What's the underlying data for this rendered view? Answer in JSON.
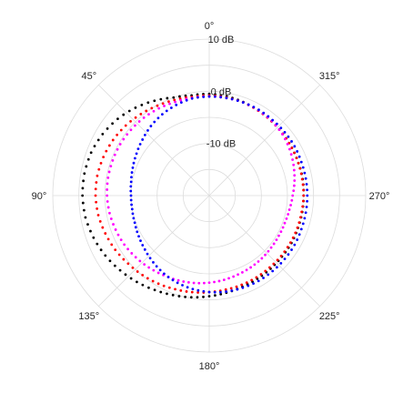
{
  "chart_data": {
    "type": "scatter",
    "projection": "polar",
    "title": "",
    "angle_direction": "counterclockwise",
    "zero_location": "top",
    "angle_tick_labels": [
      "0°",
      "45°",
      "90°",
      "135°",
      "180°",
      "225°",
      "270°",
      "315°"
    ],
    "radial_tick_labels": [
      "-10 dB",
      "0 dB",
      "10 dB"
    ],
    "radial_tick_values": [
      -10,
      0,
      10
    ],
    "rlim": [
      -20,
      10
    ],
    "grid": true,
    "legend": "none",
    "series": [
      {
        "color": "#000000",
        "theta_deg": [
          0,
          10,
          20,
          30,
          40,
          50,
          60,
          70,
          80,
          90,
          100,
          110,
          120,
          130,
          140,
          150,
          160,
          170,
          180,
          190,
          200,
          210,
          220,
          230,
          240,
          250,
          260,
          270,
          280,
          290,
          300,
          310,
          320,
          330,
          340,
          350
        ],
        "r_db": [
          -0.5,
          -0.5,
          0.0,
          1.0,
          2.0,
          2.9,
          3.6,
          4.1,
          4.3,
          4.3,
          4.1,
          3.6,
          3.0,
          2.3,
          1.6,
          0.9,
          0.3,
          -0.2,
          -0.7,
          -1.1,
          -1.4,
          -1.6,
          -1.7,
          -1.8,
          -1.8,
          -1.9,
          -1.9,
          -1.9,
          -1.8,
          -1.8,
          -1.7,
          -1.6,
          -1.4,
          -1.2,
          -0.9,
          -0.7
        ]
      },
      {
        "color": "#ff0000",
        "theta_deg": [
          0,
          10,
          20,
          30,
          40,
          50,
          60,
          70,
          80,
          90,
          100,
          110,
          120,
          130,
          140,
          150,
          160,
          170,
          180,
          190,
          200,
          210,
          220,
          230,
          240,
          250,
          260,
          270,
          280,
          290,
          300,
          310,
          320,
          330,
          340,
          350
        ],
        "r_db": [
          -0.8,
          -0.8,
          -0.5,
          -0.1,
          0.4,
          0.9,
          1.3,
          1.6,
          1.8,
          1.8,
          1.6,
          1.2,
          0.8,
          0.3,
          -0.1,
          -0.5,
          -0.9,
          -1.2,
          -1.5,
          -1.7,
          -1.8,
          -1.9,
          -2.0,
          -2.0,
          -2.0,
          -2.0,
          -2.0,
          -1.9,
          -1.9,
          -1.8,
          -1.7,
          -1.6,
          -1.4,
          -1.2,
          -1.0,
          -0.9
        ]
      },
      {
        "color": "#ff00ff",
        "theta_deg": [
          0,
          10,
          20,
          30,
          40,
          50,
          60,
          70,
          80,
          90,
          100,
          110,
          120,
          130,
          140,
          150,
          160,
          170,
          180,
          190,
          200,
          210,
          220,
          230,
          240,
          250,
          260,
          270,
          280,
          290,
          300,
          310,
          320,
          330,
          340,
          350
        ],
        "r_db": [
          -1.0,
          -1.0,
          -0.9,
          -0.7,
          -0.5,
          -0.4,
          -0.3,
          -0.3,
          -0.3,
          -0.4,
          -0.6,
          -0.9,
          -1.2,
          -1.6,
          -2.0,
          -2.4,
          -2.7,
          -3.0,
          -3.3,
          -3.6,
          -3.9,
          -4.1,
          -4.3,
          -4.5,
          -4.6,
          -4.6,
          -4.4,
          -4.0,
          -3.4,
          -2.8,
          -2.2,
          -1.7,
          -1.3,
          -1.1,
          -1.0,
          -1.0
        ]
      },
      {
        "color": "#0000ff",
        "theta_deg": [
          0,
          10,
          20,
          30,
          40,
          50,
          60,
          70,
          80,
          90,
          100,
          110,
          120,
          130,
          140,
          150,
          160,
          170,
          180,
          190,
          200,
          210,
          220,
          230,
          240,
          250,
          260,
          270,
          280,
          290,
          300,
          310,
          320,
          330,
          340,
          350
        ],
        "r_db": [
          -1.0,
          -1.1,
          -1.5,
          -2.0,
          -2.6,
          -3.3,
          -3.9,
          -4.4,
          -4.8,
          -5.0,
          -5.0,
          -4.8,
          -4.4,
          -3.9,
          -3.3,
          -2.7,
          -2.2,
          -1.8,
          -1.5,
          -1.3,
          -1.2,
          -1.1,
          -1.1,
          -1.1,
          -1.1,
          -1.2,
          -1.2,
          -1.2,
          -1.2,
          -1.2,
          -1.1,
          -1.1,
          -1.1,
          -1.0,
          -1.0,
          -1.0
        ]
      }
    ]
  }
}
